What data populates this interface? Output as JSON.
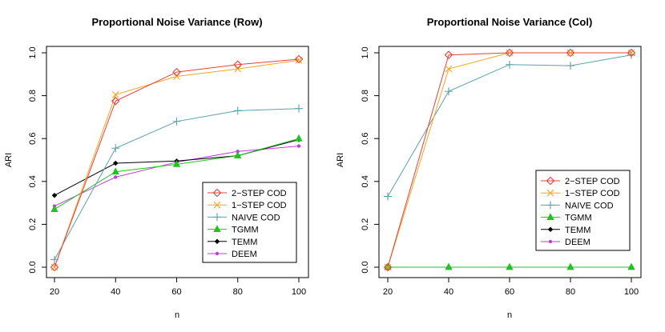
{
  "chart_data": [
    {
      "type": "line",
      "title": "Proportional Noise Variance (Row)",
      "xlabel": "n",
      "ylabel": "ARI",
      "x": [
        20,
        40,
        60,
        80,
        100
      ],
      "xlim": [
        20,
        100
      ],
      "ylim": [
        0,
        1
      ],
      "xticks": [
        "20",
        "40",
        "60",
        "80",
        "100"
      ],
      "yticks": [
        "0.0",
        "0.2",
        "0.4",
        "0.6",
        "0.8",
        "1.0"
      ],
      "legend_position": "bottom-right",
      "series": [
        {
          "name": "2−STEP COD",
          "color": "#e8403a",
          "marker": "diamond-open",
          "values": [
            0.0,
            0.775,
            0.91,
            0.945,
            0.97
          ]
        },
        {
          "name": "1−STEP COD",
          "color": "#f5a623",
          "marker": "x",
          "values": [
            0.0,
            0.805,
            0.89,
            0.925,
            0.965
          ]
        },
        {
          "name": "NAIVE COD",
          "color": "#5aa3a8",
          "marker": "plus",
          "values": [
            0.035,
            0.555,
            0.68,
            0.73,
            0.74
          ]
        },
        {
          "name": "TGMM",
          "color": "#1fc41f",
          "marker": "triangle",
          "values": [
            0.27,
            0.445,
            0.48,
            0.52,
            0.6
          ]
        },
        {
          "name": "TEMM",
          "color": "#000000",
          "marker": "diamond-filled",
          "values": [
            0.335,
            0.485,
            0.495,
            0.52,
            0.595
          ]
        },
        {
          "name": "DEEM",
          "color": "#c23bde",
          "marker": "dot",
          "values": [
            0.285,
            0.42,
            0.49,
            0.54,
            0.565
          ]
        }
      ]
    },
    {
      "type": "line",
      "title": "Proportional Noise Variance (Col)",
      "xlabel": "n",
      "ylabel": "ARI",
      "x": [
        20,
        40,
        60,
        80,
        100
      ],
      "xlim": [
        20,
        100
      ],
      "ylim": [
        0,
        1
      ],
      "xticks": [
        "20",
        "40",
        "60",
        "80",
        "100"
      ],
      "yticks": [
        "0.0",
        "0.2",
        "0.4",
        "0.6",
        "0.8",
        "1.0"
      ],
      "legend_position": "center-right",
      "series": [
        {
          "name": "2−STEP COD",
          "color": "#e8403a",
          "marker": "diamond-open",
          "values": [
            0.0,
            0.99,
            1.0,
            1.0,
            1.0
          ]
        },
        {
          "name": "1−STEP COD",
          "color": "#f5a623",
          "marker": "x",
          "values": [
            0.0,
            0.925,
            1.0,
            1.0,
            1.0
          ]
        },
        {
          "name": "NAIVE COD",
          "color": "#5aa3a8",
          "marker": "plus",
          "values": [
            0.33,
            0.82,
            0.945,
            0.94,
            0.99
          ]
        },
        {
          "name": "TGMM",
          "color": "#1fc41f",
          "marker": "triangle",
          "values": [
            0.0,
            0.0,
            0.0,
            0.0,
            0.0
          ]
        },
        {
          "name": "TEMM",
          "color": "#000000",
          "marker": "diamond-filled",
          "values": [
            0.0,
            0.0,
            0.0,
            0.0,
            0.0
          ]
        },
        {
          "name": "DEEM",
          "color": "#c23bde",
          "marker": "dot",
          "values": [
            0.0,
            0.0,
            0.0,
            0.0,
            0.0
          ]
        }
      ]
    }
  ]
}
